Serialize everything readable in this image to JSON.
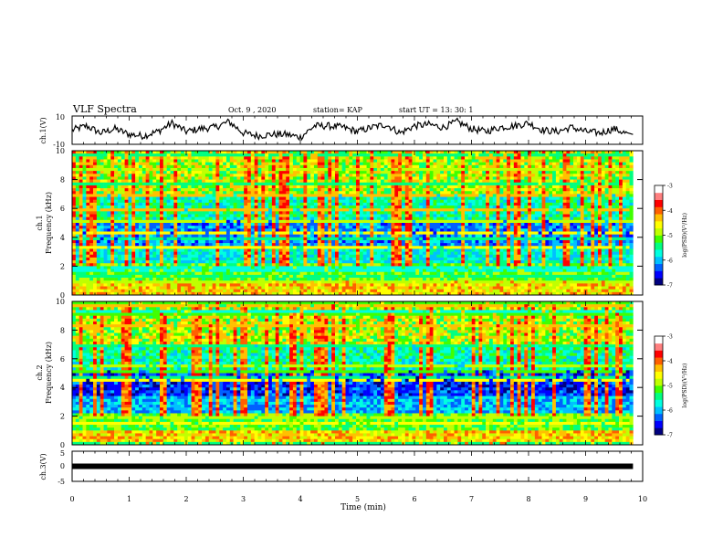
{
  "header": {
    "title": "VLF Spectra",
    "date": "Oct. 9 , 2020",
    "station": "station= KAP",
    "start": "start UT = 13: 30: 1"
  },
  "chart_data": [
    {
      "type": "line",
      "panel": "ch1",
      "ylabel": "ch.1(V)",
      "xlim": [
        0,
        10
      ],
      "ylim": [
        -10,
        10
      ],
      "y_ticks": [
        "10",
        "-10"
      ],
      "x": [
        0,
        0.25,
        0.5,
        0.75,
        1,
        1.25,
        1.5,
        1.75,
        2,
        2.25,
        2.5,
        2.75,
        3,
        3.25,
        3.5,
        3.75,
        4,
        4.25,
        4.5,
        4.75,
        5,
        5.25,
        5.5,
        5.75,
        6,
        6.25,
        6.5,
        6.75,
        7,
        7.25,
        7.5,
        7.75,
        8,
        8.25,
        8.5,
        8.75,
        9,
        9.25,
        9.5,
        9.75
      ],
      "values": [
        0,
        3,
        -2,
        1,
        -3,
        -4,
        -1,
        5,
        -1,
        1,
        2,
        6,
        -2,
        -4,
        -3,
        -3,
        -5,
        3,
        3,
        2,
        -1,
        2,
        4,
        -2,
        3,
        4,
        2,
        6,
        1,
        -1,
        2,
        3,
        5,
        0,
        -1,
        2,
        -1,
        -2,
        1,
        -3
      ]
    },
    {
      "type": "heatmap",
      "panel": "ch1-spectrogram",
      "ylabel_lines": [
        "ch.1",
        "Frequency (kHz)"
      ],
      "xlim": [
        0,
        10
      ],
      "ylim": [
        0,
        10
      ],
      "y_ticks": [
        "0",
        "2",
        "4",
        "6",
        "8",
        "10"
      ],
      "colorbar": {
        "label": "log(PSD)(V²/Hz)",
        "ticks": [
          "-3",
          "-4",
          "-5",
          "-6",
          "-7"
        ],
        "range": [
          -7,
          -3
        ]
      }
    },
    {
      "type": "heatmap",
      "panel": "ch2-spectrogram",
      "ylabel_lines": [
        "ch.2",
        "Frequency (kHz)"
      ],
      "xlim": [
        0,
        10
      ],
      "ylim": [
        0,
        10
      ],
      "y_ticks": [
        "0",
        "2",
        "4",
        "6",
        "8",
        "10"
      ],
      "colorbar": {
        "label": "log(PSD)(V²/Hz)",
        "ticks": [
          "-3",
          "-4",
          "-5",
          "-6",
          "-7"
        ],
        "range": [
          -7,
          -3
        ]
      }
    },
    {
      "type": "line",
      "panel": "ch3",
      "ylabel": "ch.3(V)",
      "xlim": [
        0,
        10
      ],
      "ylim": [
        -5,
        5
      ],
      "y_ticks": [
        "5",
        "0",
        "-5"
      ],
      "x": [
        0,
        9.83
      ],
      "values": [
        0,
        0
      ]
    }
  ],
  "xaxis": {
    "label": "Time (min)",
    "ticks": [
      "0",
      "1",
      "2",
      "3",
      "4",
      "5",
      "6",
      "7",
      "8",
      "9",
      "10"
    ],
    "data_end": 9.83
  },
  "colormap": [
    "#000080",
    "#0000ff",
    "#0060ff",
    "#00c0ff",
    "#00ffe0",
    "#00ff80",
    "#40ff00",
    "#c0ff00",
    "#ffff00",
    "#ffc000",
    "#ff6000",
    "#ff0000",
    "#ff8080",
    "#ffffff"
  ]
}
